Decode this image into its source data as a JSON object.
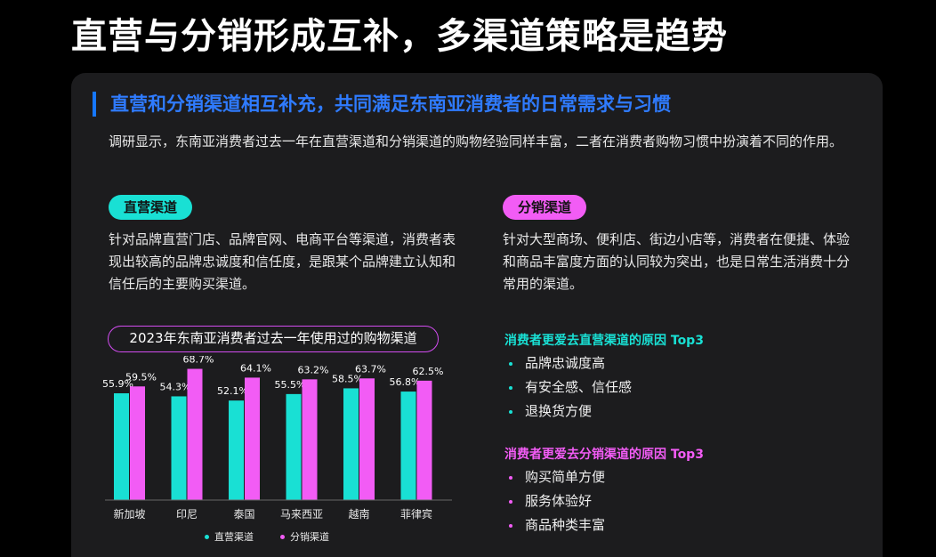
{
  "page": {
    "title": "直营与分销形成互补，多渠道策略是趋势",
    "subtitle": "直营和分销渠道相互补充，共同满足东南亚消费者的日常需求与习惯",
    "intro": "调研显示，东南亚消费者过去一年在直营渠道和分销渠道的购物经验同样丰富，二者在消费者购物习惯中扮演着不同的作用。"
  },
  "channels": {
    "direct": {
      "label": "直营渠道",
      "description": "针对品牌直营门店、品牌官网、电商平台等渠道，消费者表现出较高的品牌忠诚度和信任度，是跟某个品牌建立认知和信任后的主要购买渠道。"
    },
    "distribution": {
      "label": "分销渠道",
      "description": "针对大型商场、便利店、街边小店等，消费者在便捷、体验和商品丰富度方面的认同较为突出，也是日常生活消费十分常用的渠道。"
    }
  },
  "reasons": {
    "direct": {
      "title": "消费者更爱去直营渠道的原因 Top3",
      "items": [
        "品牌忠诚度高",
        "有安全感、信任感",
        "退换货方便"
      ]
    },
    "distribution": {
      "title": "消费者更爱去分销渠道的原因 Top3",
      "items": [
        "购买简单方便",
        "服务体验好",
        "商品种类丰富"
      ]
    }
  },
  "colors": {
    "direct": "#19e0d4",
    "distribution": "#f25cf5",
    "accent_blue": "#2f7bff"
  },
  "chart_data": {
    "type": "bar",
    "title": "2023年东南亚消费者过去一年使用过的购物渠道",
    "categories": [
      "新加坡",
      "印尼",
      "泰国",
      "马来西亚",
      "越南",
      "菲律宾"
    ],
    "series": [
      {
        "name": "直营渠道",
        "values": [
          55.9,
          54.3,
          52.1,
          55.5,
          58.5,
          56.8
        ],
        "labels": [
          "55.9%",
          "54.3%",
          "52.1%",
          "55.5%",
          "58.5%",
          "56.8%"
        ]
      },
      {
        "name": "分销渠道",
        "values": [
          59.5,
          68.7,
          64.1,
          63.2,
          63.7,
          62.5
        ],
        "labels": [
          "59.5%",
          "68.7%",
          "64.1%",
          "63.2%",
          "63.7%",
          "62.5%"
        ]
      }
    ],
    "ylim": [
      0,
      80
    ],
    "legend": "bottom",
    "grid": false
  }
}
